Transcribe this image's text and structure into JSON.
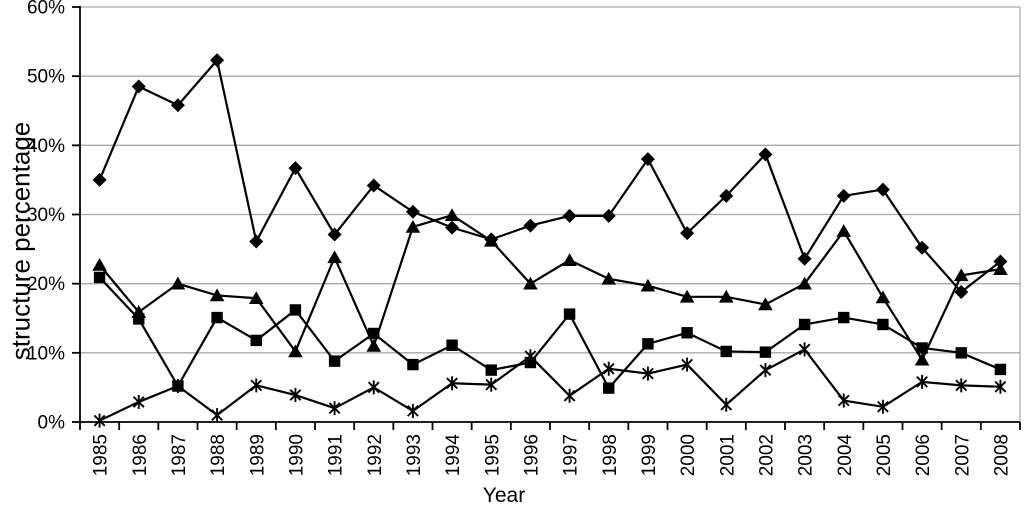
{
  "chart_data": {
    "type": "line",
    "title": "",
    "xlabel": "Year",
    "ylabel": "structure percentage",
    "x": [
      "1985",
      "1986",
      "1987",
      "1988",
      "1989",
      "1990",
      "1991",
      "1992",
      "1993",
      "1994",
      "1995",
      "1996",
      "1997",
      "1998",
      "1999",
      "2000",
      "2001",
      "2002",
      "2003",
      "2004",
      "2005",
      "2006",
      "2007",
      "2008"
    ],
    "ylim": [
      0,
      60
    ],
    "ytick_step": 10,
    "ytick_labels": [
      "0%",
      "10%",
      "20%",
      "30%",
      "40%",
      "50%",
      "60%"
    ],
    "grid": "horizontal",
    "legend": "none",
    "colors": {
      "series": "#000000",
      "gridline": "#a9a9a9",
      "axis": "#000000",
      "background": "#ffffff"
    },
    "series": [
      {
        "name": "series-1-diamond",
        "marker": "diamond",
        "values": [
          35.0,
          48.5,
          45.8,
          52.3,
          26.1,
          36.7,
          27.1,
          34.2,
          30.4,
          28.1,
          26.4,
          28.4,
          29.8,
          29.8,
          38.0,
          27.3,
          32.7,
          38.7,
          23.6,
          32.7,
          33.6,
          25.2,
          18.8,
          23.2
        ]
      },
      {
        "name": "series-2-square",
        "marker": "square",
        "values": [
          20.9,
          14.9,
          5.2,
          15.1,
          11.8,
          16.2,
          8.8,
          12.8,
          8.3,
          11.1,
          7.5,
          8.6,
          15.6,
          4.9,
          11.3,
          12.9,
          10.2,
          10.1,
          14.1,
          15.1,
          14.1,
          10.7,
          10.0,
          7.6
        ]
      },
      {
        "name": "series-3-triangle",
        "marker": "triangle",
        "values": [
          22.7,
          15.9,
          20.0,
          18.3,
          17.9,
          10.2,
          23.8,
          11.0,
          28.2,
          29.9,
          26.2,
          20.0,
          23.4,
          20.7,
          19.7,
          18.1,
          18.1,
          17.0,
          20.0,
          27.6,
          18.0,
          9.0,
          21.2,
          22.1
        ]
      },
      {
        "name": "series-4-asterisk",
        "marker": "asterisk",
        "values": [
          0.2,
          2.9,
          5.2,
          1.0,
          5.3,
          3.9,
          2.0,
          5.0,
          1.6,
          5.6,
          5.4,
          9.5,
          3.8,
          7.7,
          7.0,
          8.3,
          2.5,
          7.5,
          10.5,
          3.1,
          2.2,
          5.8,
          5.3,
          5.1
        ]
      }
    ]
  }
}
